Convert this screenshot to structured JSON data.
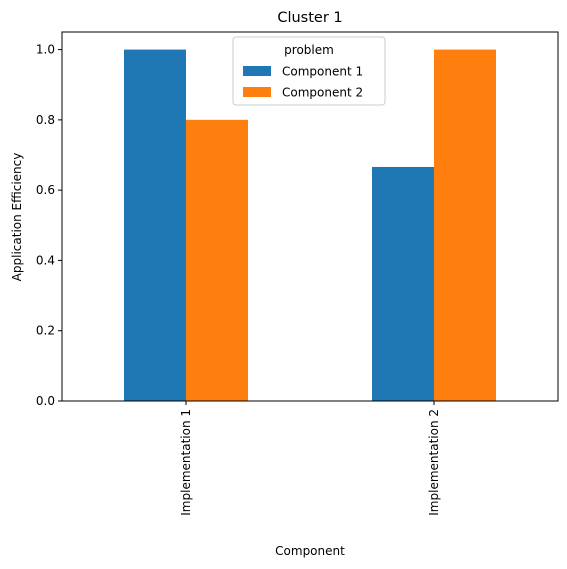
{
  "chart_data": {
    "type": "bar",
    "title": "Cluster 1",
    "xlabel": "Component",
    "ylabel": "Application Efficiency",
    "categories": [
      "Implementation 1",
      "Implementation 2"
    ],
    "series": [
      {
        "name": "Component 1",
        "values": [
          1.0,
          0.666
        ],
        "color": "#1f77b4"
      },
      {
        "name": "Component 2",
        "values": [
          0.8,
          1.0
        ],
        "color": "#ff7f0e"
      }
    ],
    "ylim": [
      0,
      1.05
    ],
    "yticks": [
      0.0,
      0.2,
      0.4,
      0.6,
      0.8,
      1.0
    ],
    "ytick_labels": [
      "0.0",
      "0.2",
      "0.4",
      "0.6",
      "0.8",
      "1.0"
    ],
    "grid": false,
    "legend": {
      "title": "problem",
      "placement": "upper-center"
    }
  }
}
